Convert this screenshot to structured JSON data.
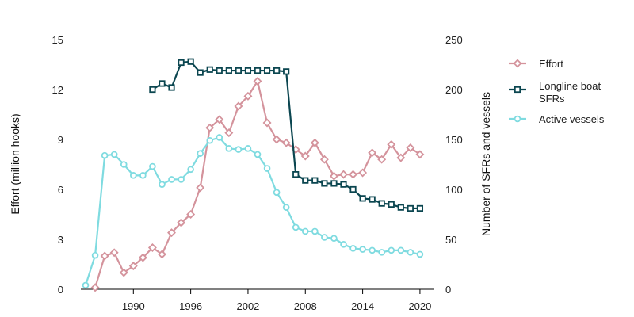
{
  "chart_data": {
    "type": "line",
    "xlabel": "",
    "ylabel_left": "Effort (million hooks)",
    "ylabel_right": "Number of SFRs and vessels",
    "xlim": [
      1984.5,
      2021.5
    ],
    "ylim_left": [
      0,
      15
    ],
    "ylim_right": [
      0,
      250
    ],
    "x_ticks": [
      "1990",
      "1996",
      "2002",
      "2008",
      "2014",
      "2020"
    ],
    "x_tick_values": [
      1990,
      1996,
      2002,
      2008,
      2014,
      2020
    ],
    "y_left_ticks": [
      "0",
      "3",
      "6",
      "9",
      "12",
      "15"
    ],
    "y_left_tick_values": [
      0,
      3,
      6,
      9,
      12,
      15
    ],
    "y_right_ticks": [
      "0",
      "50",
      "100",
      "150",
      "200",
      "250"
    ],
    "y_right_tick_values": [
      0,
      50,
      100,
      150,
      200,
      250
    ],
    "grid": false,
    "legend_position": "right",
    "series": [
      {
        "name": "Effort",
        "axis": "left",
        "color": "#d4939c",
        "marker": "diamond",
        "x": [
          1986,
          1987,
          1988,
          1989,
          1990,
          1991,
          1992,
          1993,
          1994,
          1995,
          1996,
          1997,
          1998,
          1999,
          2000,
          2001,
          2002,
          2003,
          2004,
          2005,
          2006,
          2007,
          2008,
          2009,
          2010,
          2011,
          2012,
          2013,
          2014,
          2015,
          2016,
          2017,
          2018,
          2019,
          2020
        ],
        "y": [
          0.1,
          2.0,
          2.2,
          1.0,
          1.4,
          1.9,
          2.5,
          2.1,
          3.4,
          4.0,
          4.5,
          6.1,
          9.7,
          10.2,
          9.4,
          11.0,
          11.6,
          12.5,
          10.0,
          9.0,
          8.8,
          8.4,
          8.0,
          8.8,
          7.8,
          6.8,
          6.9,
          6.9,
          7.0,
          8.2,
          7.8,
          8.7,
          7.9,
          8.5,
          8.1
        ]
      },
      {
        "name": "Longline boat SFRs",
        "axis": "right",
        "color": "#0b4650",
        "marker": "square",
        "x": [
          1992,
          1993,
          1994,
          1995,
          1996,
          1997,
          1998,
          1999,
          2000,
          2001,
          2002,
          2003,
          2004,
          2005,
          2006,
          2007,
          2008,
          2009,
          2010,
          2011,
          2012,
          2013,
          2014,
          2015,
          2016,
          2017,
          2018,
          2019,
          2020
        ],
        "y": [
          200,
          206,
          202,
          227,
          228,
          217,
          220,
          219,
          219,
          219,
          219,
          219,
          219,
          219,
          218,
          115,
          109,
          109,
          106,
          106,
          105,
          100,
          91,
          90,
          86,
          85,
          82,
          81,
          81
        ]
      },
      {
        "name": "Active vessels",
        "axis": "right",
        "color": "#7fdbe0",
        "marker": "circle",
        "x": [
          1985,
          1986,
          1987,
          1988,
          1989,
          1990,
          1991,
          1992,
          1993,
          1994,
          1995,
          1996,
          1997,
          1998,
          1999,
          2000,
          2001,
          2002,
          2003,
          2004,
          2005,
          2006,
          2007,
          2008,
          2009,
          2010,
          2011,
          2012,
          2013,
          2014,
          2015,
          2016,
          2017,
          2018,
          2019,
          2020
        ],
        "y": [
          4,
          34,
          134,
          135,
          125,
          114,
          114,
          123,
          105,
          110,
          110,
          120,
          136,
          149,
          152,
          141,
          140,
          141,
          135,
          121,
          97,
          82,
          62,
          58,
          58,
          52,
          51,
          45,
          41,
          40,
          39,
          37,
          39,
          39,
          37,
          35
        ]
      }
    ]
  }
}
